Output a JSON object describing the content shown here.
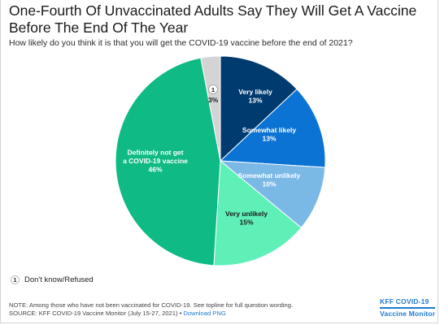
{
  "title": "One-Fourth Of Unvaccinated Adults Say They Will Get A Vaccine Before The End Of The Year",
  "subtitle": "How likely do you think it is that you will get the COVID-19 vaccine before the end of 2021?",
  "legend": {
    "badge": "1",
    "label": "Don't know/Refused"
  },
  "footer": {
    "note": "NOTE: Among those who have not been vaccinated for COVID-19. See topline for full question wording.",
    "source": "SOURCE: KFF COVID-19 Vaccine Monitor (July 15-27, 2021) •",
    "download": "Download PNG"
  },
  "brand": {
    "line1": "KFF COVID-19",
    "line2": "Vaccine Monitor"
  },
  "chart_data": {
    "type": "pie",
    "slices": [
      {
        "label": "Very likely",
        "value": 13,
        "value_label": "13%",
        "color": "#003b6f",
        "text_color": "#ffffff"
      },
      {
        "label": "Somewhat likely",
        "value": 13,
        "value_label": "13%",
        "color": "#0b73d4",
        "text_color": "#ffffff"
      },
      {
        "label": "Somewhat unlikely",
        "value": 10,
        "value_label": "10%",
        "color": "#7ab8e6",
        "text_color": "#ffffff"
      },
      {
        "label": "Very unlikely",
        "value": 15,
        "value_label": "15%",
        "color": "#5ff0b8",
        "text_color": "#1a1a1a"
      },
      {
        "label": "Definitely not get a COVID-19 vaccine",
        "value": 46,
        "value_label": "46%",
        "color": "#0fba84",
        "text_color": "#ffffff"
      },
      {
        "label": "1",
        "value": 3,
        "value_label": "3%",
        "color": "#d4d4d4",
        "text_color": "#1a1a1a",
        "badge": true
      }
    ]
  }
}
